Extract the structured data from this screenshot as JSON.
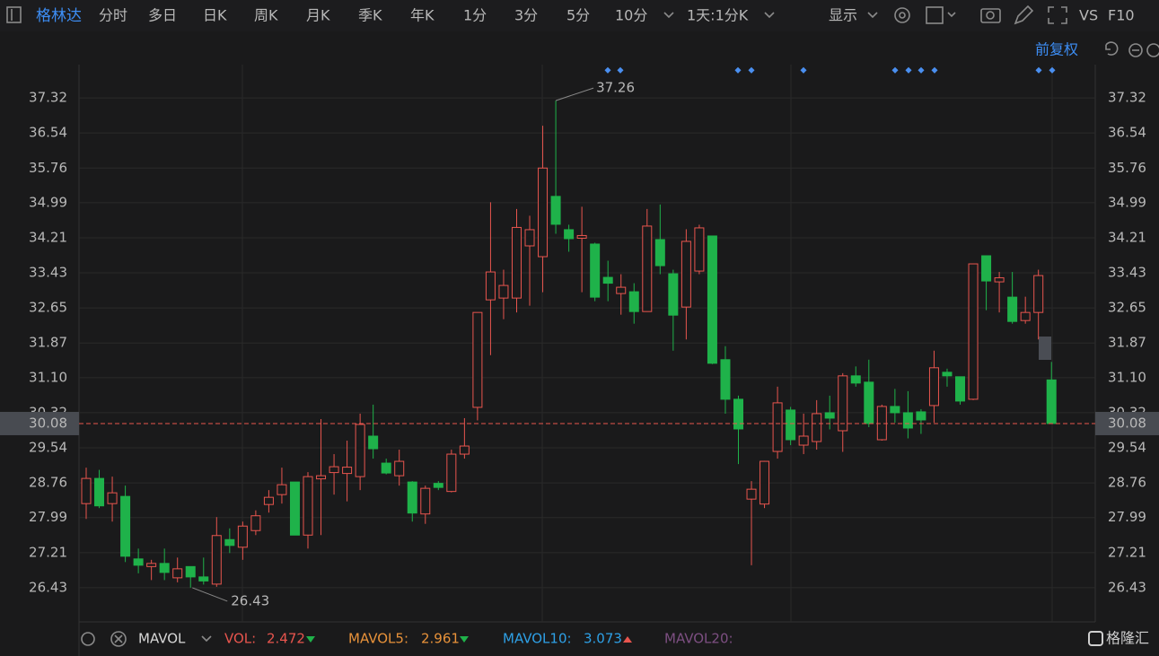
{
  "toolbar": {
    "stock": "格林达",
    "periods": [
      "分时",
      "多日",
      "日K",
      "周K",
      "月K",
      "季K",
      "年K",
      "1分",
      "3分",
      "5分",
      "10分"
    ],
    "interval": "1天:1分K",
    "display": "显示",
    "vs": "VS",
    "f10": "F10"
  },
  "adjust": "前复权",
  "chart_data": {
    "type": "candlestick",
    "open": [
      28.3,
      28.86,
      28.3,
      28.46,
      27.07,
      26.9,
      26.97,
      26.65,
      26.9,
      26.67,
      26.51,
      27.5,
      27.33,
      27.7,
      28.28,
      28.5,
      28.78,
      27.6,
      28.85,
      28.99,
      28.97,
      28.9,
      29.8,
      29.2,
      28.92,
      28.78,
      28.07,
      28.75,
      28.57,
      29.4,
      30.44,
      32.83,
      32.87,
      32.87,
      34.03,
      33.79,
      35.13,
      34.39,
      34.2,
      34.07,
      33.33,
      32.97,
      33.01,
      32.57,
      34.17,
      33.41,
      32.67,
      33.47,
      34.25,
      31.5,
      30.62,
      28.4,
      28.29,
      29.46,
      30.38,
      29.6,
      29.68,
      30.32,
      29.92,
      31.14,
      31.0,
      29.72,
      30.46,
      30.32,
      30.34,
      30.48,
      31.22,
      31.12,
      30.62,
      33.81,
      33.23,
      32.89,
      32.37,
      32.55,
      31.05
    ],
    "high": [
      29.1,
      29.05,
      28.9,
      28.7,
      27.3,
      27.05,
      27.3,
      27.1,
      26.9,
      27.1,
      28.0,
      27.75,
      27.9,
      28.15,
      28.6,
      29.1,
      28.78,
      29.0,
      30.18,
      29.4,
      29.7,
      30.3,
      30.5,
      29.3,
      29.5,
      28.8,
      28.7,
      28.8,
      29.5,
      30.2,
      32.55,
      35.0,
      33.5,
      34.85,
      34.7,
      36.7,
      37.26,
      34.5,
      34.9,
      34.1,
      33.7,
      33.4,
      33.2,
      34.85,
      34.95,
      33.5,
      34.4,
      34.5,
      34.25,
      31.8,
      30.7,
      28.8,
      29.25,
      30.9,
      30.45,
      30.3,
      30.6,
      30.7,
      31.2,
      31.35,
      31.5,
      30.5,
      30.85,
      30.8,
      30.4,
      31.7,
      31.3,
      31.12,
      33.63,
      33.81,
      33.45,
      33.45,
      32.9,
      33.5,
      31.45
    ],
    "low": [
      27.96,
      28.2,
      27.9,
      27.0,
      26.75,
      26.6,
      26.6,
      26.55,
      26.43,
      26.5,
      26.45,
      27.2,
      27.05,
      27.6,
      28.1,
      28.3,
      27.6,
      27.3,
      27.6,
      28.5,
      28.35,
      28.6,
      29.3,
      28.95,
      28.7,
      27.9,
      27.85,
      28.6,
      28.55,
      29.3,
      30.15,
      31.6,
      32.4,
      32.55,
      32.7,
      33.0,
      34.3,
      33.9,
      33.0,
      32.8,
      32.8,
      32.5,
      32.3,
      32.6,
      33.4,
      31.7,
      31.95,
      33.4,
      31.4,
      30.3,
      29.18,
      26.93,
      28.2,
      29.3,
      29.6,
      29.4,
      29.5,
      29.95,
      29.45,
      30.9,
      30.0,
      29.7,
      30.1,
      29.75,
      29.85,
      30.1,
      30.9,
      30.5,
      30.6,
      32.6,
      32.55,
      32.3,
      32.3,
      31.95,
      30.08
    ],
    "close": [
      28.86,
      28.25,
      28.54,
      27.13,
      26.93,
      26.97,
      26.77,
      26.85,
      26.67,
      26.58,
      27.59,
      27.37,
      27.8,
      28.03,
      28.44,
      28.72,
      27.6,
      28.9,
      28.92,
      29.12,
      29.11,
      30.06,
      29.52,
      28.98,
      29.24,
      28.09,
      28.64,
      28.66,
      29.4,
      29.58,
      32.55,
      33.45,
      33.15,
      34.44,
      34.39,
      35.76,
      34.51,
      34.19,
      34.26,
      32.89,
      33.2,
      33.11,
      32.57,
      34.47,
      33.59,
      32.49,
      34.13,
      34.43,
      31.42,
      30.62,
      29.96,
      28.62,
      29.24,
      30.54,
      29.72,
      29.8,
      30.3,
      30.2,
      31.14,
      30.98,
      30.08,
      30.46,
      30.32,
      29.98,
      30.16,
      31.32,
      31.14,
      30.58,
      33.63,
      33.25,
      33.32,
      32.35,
      32.55,
      33.37,
      30.08
    ],
    "up_color": "#e8554e",
    "down_color": "#1fb24a",
    "ylim": [
      25.67,
      38.0
    ],
    "yticks": [
      37.32,
      36.54,
      35.76,
      34.99,
      34.21,
      33.43,
      32.65,
      31.87,
      {
        "value": 31.1,
        "label": "31.10"
      },
      30.32,
      29.54,
      28.76,
      27.99,
      27.21,
      26.43
    ],
    "grid": true
  },
  "indicator": {
    "name": "MAVOL",
    "items": [
      {
        "label": "VOL:",
        "value": 2.472,
        "color": "#e8554e"
      },
      {
        "label": "MAVOL5:",
        "value": 2.961,
        "color": "#e8923a"
      },
      {
        "label": "MAVOL10:",
        "value": 3.073,
        "color": "#2ea0e6"
      },
      {
        "label": "MAVOL20:",
        "color": "#7d4f82"
      }
    ]
  },
  "logo": "格隆汇"
}
